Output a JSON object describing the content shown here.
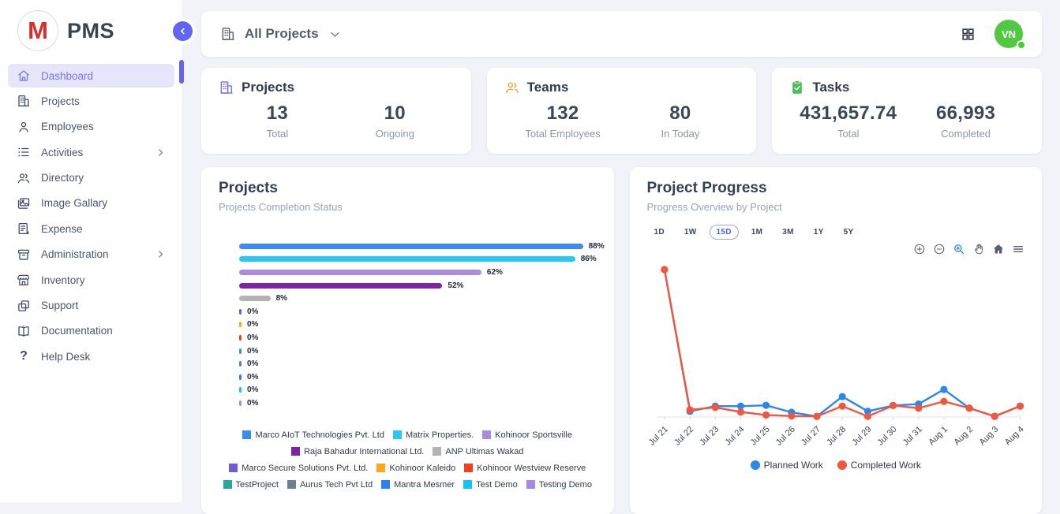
{
  "app": {
    "name": "PMS",
    "logo_letter": "M"
  },
  "header": {
    "filter_label": "All Projects",
    "avatar_initials": "VN"
  },
  "sidebar": {
    "items": [
      {
        "label": "Dashboard",
        "icon": "home-icon",
        "active": true,
        "has_submenu": false
      },
      {
        "label": "Projects",
        "icon": "building-icon",
        "active": false,
        "has_submenu": false
      },
      {
        "label": "Employees",
        "icon": "person-icon",
        "active": false,
        "has_submenu": false
      },
      {
        "label": "Activities",
        "icon": "list-icon",
        "active": false,
        "has_submenu": true
      },
      {
        "label": "Directory",
        "icon": "people-icon",
        "active": false,
        "has_submenu": false
      },
      {
        "label": "Image Gallary",
        "icon": "gallery-icon",
        "active": false,
        "has_submenu": false
      },
      {
        "label": "Expense",
        "icon": "receipt-icon",
        "active": false,
        "has_submenu": false
      },
      {
        "label": "Administration",
        "icon": "archive-icon",
        "active": false,
        "has_submenu": true
      },
      {
        "label": "Inventory",
        "icon": "store-icon",
        "active": false,
        "has_submenu": false
      },
      {
        "label": "Support",
        "icon": "copy-icon",
        "active": false,
        "has_submenu": false
      },
      {
        "label": "Documentation",
        "icon": "book-icon",
        "active": false,
        "has_submenu": false
      },
      {
        "label": "Help Desk",
        "icon": "question-icon",
        "active": false,
        "has_submenu": false
      }
    ]
  },
  "stats": [
    {
      "title": "Projects",
      "icon": "building-icon",
      "icon_color": "#7a6ff0",
      "metrics": [
        {
          "value": "13",
          "label": "Total"
        },
        {
          "value": "10",
          "label": "Ongoing"
        }
      ]
    },
    {
      "title": "Teams",
      "icon": "people-icon",
      "icon_color": "#f0a52c",
      "metrics": [
        {
          "value": "132",
          "label": "Total Employees"
        },
        {
          "value": "80",
          "label": "In Today"
        }
      ]
    },
    {
      "title": "Tasks",
      "icon": "clipboard-check-icon",
      "icon_color": "#49c154",
      "metrics": [
        {
          "value": "431,657.74",
          "label": "Total"
        },
        {
          "value": "66,993",
          "label": "Completed"
        }
      ]
    }
  ],
  "chart_data": [
    {
      "type": "bar",
      "orientation": "horizontal",
      "title": "Projects",
      "subtitle": "Projects Completion Status",
      "unit": "%",
      "xlim": [
        0,
        100
      ],
      "categories": [
        "Marco AIoT Technologies Pvt. Ltd",
        "Matrix Properties.",
        "Kohinoor Sportsville",
        "Raja Bahadur International Ltd.",
        "ANP Ultimas Wakad",
        "Marco Secure Solutions Pvt. Ltd.",
        "Kohinoor Kaleido",
        "Kohinoor Westview Reserve",
        "TestProject",
        "Aurus Tech Pvt Ltd",
        "Mantra Mesmer",
        "Test Demo",
        "Testing Demo"
      ],
      "values": [
        88,
        86,
        62,
        52,
        8,
        0,
        0,
        0,
        0,
        0,
        0,
        0,
        0
      ],
      "labels": [
        "88%",
        "86%",
        "62%",
        "52%",
        "8%",
        "0%",
        "0%",
        "0%",
        "0%",
        "0%",
        "0%",
        "0%",
        "0%"
      ],
      "colors": [
        "#3d8bf2",
        "#29c8f2",
        "#a98ce0",
        "#7e22a8",
        "#b3b3b3",
        "#6f5cd9",
        "#ffa51e",
        "#f4401c",
        "#2aa79b",
        "#6e7f8d",
        "#2e7ef7",
        "#12c3f4",
        "#a887e8"
      ],
      "legend_position": "bottom"
    },
    {
      "type": "line",
      "title": "Project Progress",
      "subtitle": "Progress Overview by Project",
      "range_buttons": [
        "1D",
        "1W",
        "15D",
        "1M",
        "3M",
        "1Y",
        "5Y"
      ],
      "active_range": "15D",
      "toolbar_icons": [
        "zoom-in-icon",
        "zoom-out-icon",
        "selection-zoom-icon",
        "pan-icon",
        "home-icon",
        "menu-icon"
      ],
      "active_tool": "selection-zoom-icon",
      "x": [
        "Jul 21",
        "Jul 22",
        "Jul 23",
        "Jul 24",
        "Jul 25",
        "Jul 26",
        "Jul 27",
        "Jul 28",
        "Jul 29",
        "Jul 30",
        "Jul 31",
        "Aug 1",
        "Aug 2",
        "Aug 3",
        "Aug 4"
      ],
      "series": [
        {
          "name": "Planned Work",
          "color": "#2b87f0",
          "values": [
            100,
            3.9,
            7.4,
            7.4,
            7.9,
            3.2,
            0.4,
            13.9,
            3.9,
            7.8,
            8.8,
            18.7,
            6,
            0.5,
            7.4
          ]
        },
        {
          "name": "Completed Work",
          "color": "#f4563c",
          "values": [
            100,
            4.9,
            6.5,
            3.4,
            1.4,
            0.7,
            0.4,
            7.4,
            0.4,
            7.8,
            6,
            10.6,
            6,
            0.5,
            7.4
          ]
        }
      ],
      "ylim": [
        0,
        100
      ],
      "y_axis_visible": false,
      "grid": false,
      "legend_position": "bottom"
    }
  ]
}
